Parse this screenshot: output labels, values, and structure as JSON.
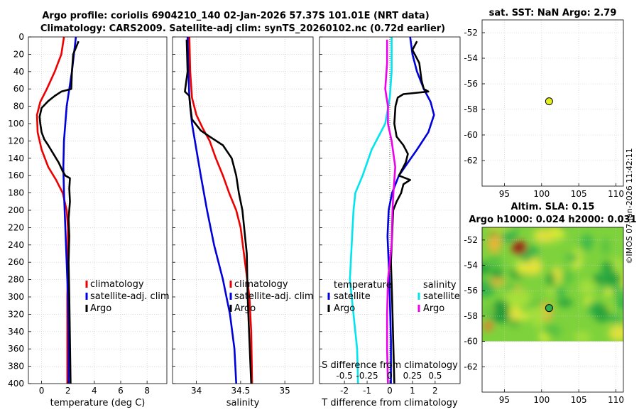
{
  "title": {
    "line1": "Argo profile: coriolis 6904210_140 02-Jan-2026 57.37S 101.01E (NRT data)",
    "line2": "Climatology: CARS2009. Satellite-adj clim: synTS_20260102.nc (0.72d earlier)"
  },
  "credit": "©IMOS 07-Jan-2026 11:42:11",
  "colors": {
    "climatology": "#ee0000",
    "satellite": "#0000dd",
    "argo": "#000000",
    "cyan": "#00e5ee",
    "magenta": "#ee00ee"
  },
  "chart_data": [
    {
      "type": "line",
      "id": "temperature",
      "xlabel": "temperature (deg C)",
      "ylabel": "",
      "xlim": [
        -1,
        9.5
      ],
      "ylim": [
        400,
        0
      ],
      "xticks": [
        "0",
        "2",
        "4",
        "6",
        "8"
      ],
      "xtick_values": [
        0,
        2,
        4,
        6,
        8
      ],
      "yticks": [
        "0",
        "20",
        "40",
        "60",
        "80",
        "100",
        "120",
        "140",
        "160",
        "180",
        "200",
        "220",
        "240",
        "260",
        "280",
        "300",
        "320",
        "340",
        "360",
        "380",
        "400"
      ],
      "legend": [
        "climatology",
        "satellite-adj. clim",
        "Argo"
      ],
      "legend_location": "right",
      "series": [
        {
          "name": "climatology",
          "color_key": "climatology",
          "points": [
            [
              1.7,
              0
            ],
            [
              1.5,
              20
            ],
            [
              1.0,
              40
            ],
            [
              0.4,
              60
            ],
            [
              -0.1,
              75
            ],
            [
              -0.35,
              90
            ],
            [
              -0.3,
              110
            ],
            [
              0.0,
              130
            ],
            [
              0.5,
              150
            ],
            [
              1.1,
              165
            ],
            [
              1.6,
              180
            ],
            [
              1.9,
              200
            ],
            [
              2.0,
              220
            ],
            [
              2.0,
              260
            ],
            [
              1.95,
              300
            ],
            [
              1.95,
              400
            ]
          ]
        },
        {
          "name": "satellite-adj. clim",
          "color_key": "satellite",
          "points": [
            [
              2.6,
              0
            ],
            [
              2.45,
              20
            ],
            [
              2.3,
              40
            ],
            [
              2.1,
              60
            ],
            [
              1.9,
              80
            ],
            [
              1.8,
              100
            ],
            [
              1.7,
              120
            ],
            [
              1.65,
              150
            ],
            [
              1.7,
              180
            ],
            [
              1.8,
              220
            ],
            [
              1.9,
              260
            ],
            [
              2.0,
              300
            ],
            [
              2.05,
              350
            ],
            [
              2.05,
              400
            ]
          ]
        },
        {
          "name": "Argo",
          "color_key": "argo",
          "points": [
            [
              2.8,
              5
            ],
            [
              2.4,
              20
            ],
            [
              2.3,
              40
            ],
            [
              2.25,
              60
            ],
            [
              1.5,
              63
            ],
            [
              1.0,
              68
            ],
            [
              0.5,
              74
            ],
            [
              0.0,
              82
            ],
            [
              -0.15,
              92
            ],
            [
              -0.1,
              100
            ],
            [
              0.0,
              110
            ],
            [
              0.2,
              118
            ],
            [
              0.5,
              125
            ],
            [
              0.9,
              135
            ],
            [
              1.3,
              145
            ],
            [
              1.6,
              155
            ],
            [
              1.8,
              160
            ],
            [
              2.15,
              163
            ],
            [
              2.1,
              175
            ],
            [
              2.15,
              190
            ],
            [
              2.05,
              210
            ],
            [
              2.1,
              230
            ],
            [
              2.05,
              260
            ],
            [
              2.1,
              300
            ],
            [
              2.15,
              350
            ],
            [
              2.2,
              400
            ]
          ]
        }
      ]
    },
    {
      "type": "line",
      "id": "salinity",
      "xlabel": "salinity",
      "xlim": [
        33.73,
        35.32
      ],
      "ylim": [
        400,
        0
      ],
      "xticks": [
        "34",
        "34.5",
        "35"
      ],
      "xtick_values": [
        34,
        34.5,
        35
      ],
      "legend": [
        "climatology",
        "satellite-adj. clim",
        "Argo"
      ],
      "legend_location": "right",
      "series": [
        {
          "name": "climatology",
          "color_key": "climatology",
          "points": [
            [
              33.92,
              0
            ],
            [
              33.93,
              40
            ],
            [
              33.95,
              70
            ],
            [
              34.0,
              90
            ],
            [
              34.07,
              105
            ],
            [
              34.15,
              120
            ],
            [
              34.22,
              140
            ],
            [
              34.3,
              160
            ],
            [
              34.37,
              180
            ],
            [
              34.45,
              200
            ],
            [
              34.5,
              220
            ],
            [
              34.55,
              260
            ],
            [
              34.6,
              300
            ],
            [
              34.62,
              340
            ],
            [
              34.63,
              400
            ]
          ]
        },
        {
          "name": "satellite-adj. clim",
          "color_key": "satellite",
          "points": [
            [
              33.9,
              0
            ],
            [
              33.91,
              40
            ],
            [
              33.92,
              70
            ],
            [
              33.95,
              100
            ],
            [
              34.0,
              130
            ],
            [
              34.05,
              160
            ],
            [
              34.12,
              200
            ],
            [
              34.2,
              240
            ],
            [
              34.3,
              280
            ],
            [
              34.38,
              320
            ],
            [
              34.43,
              360
            ],
            [
              34.45,
              400
            ]
          ]
        },
        {
          "name": "Argo",
          "color_key": "argo",
          "points": [
            [
              33.89,
              3
            ],
            [
              33.9,
              40
            ],
            [
              33.87,
              63
            ],
            [
              33.92,
              68
            ],
            [
              33.93,
              80
            ],
            [
              33.95,
              95
            ],
            [
              34.05,
              108
            ],
            [
              34.15,
              115
            ],
            [
              34.3,
              125
            ],
            [
              34.4,
              140
            ],
            [
              34.45,
              160
            ],
            [
              34.48,
              180
            ],
            [
              34.52,
              200
            ],
            [
              34.55,
              230
            ],
            [
              34.57,
              250
            ],
            [
              34.58,
              300
            ],
            [
              34.6,
              350
            ],
            [
              34.62,
              400
            ]
          ]
        }
      ]
    },
    {
      "type": "line",
      "id": "difference",
      "xlabel": "T difference from climatology",
      "xlabel_top": "S difference from climatology",
      "xlim": [
        -3.1,
        3.1
      ],
      "ylim": [
        400,
        0
      ],
      "xticks": [
        "-2",
        "-1",
        "0",
        "1",
        "2"
      ],
      "xtick_values": [
        -2,
        -1,
        0,
        1,
        2
      ],
      "s_ticks": [
        "-0.5",
        "-0.25",
        "0",
        "0.25",
        "0.5"
      ],
      "s_tick_values": [
        -0.5,
        -0.25,
        0,
        0.25,
        0.5
      ],
      "legend_left_title": "temperature",
      "legend_left": [
        "satellite",
        "Argo"
      ],
      "legend_right_title": "salinity",
      "legend_right": [
        "satellite",
        "Argo"
      ],
      "series": [
        {
          "name": "temperature satellite",
          "color_key": "satellite",
          "points": [
            [
              0.9,
              0
            ],
            [
              1.0,
              20
            ],
            [
              1.2,
              40
            ],
            [
              1.5,
              60
            ],
            [
              1.8,
              75
            ],
            [
              1.95,
              90
            ],
            [
              1.7,
              110
            ],
            [
              1.2,
              130
            ],
            [
              0.8,
              145
            ],
            [
              0.4,
              160
            ],
            [
              0.1,
              180
            ],
            [
              -0.05,
              200
            ],
            [
              -0.1,
              230
            ],
            [
              -0.05,
              260
            ],
            [
              0.0,
              300
            ],
            [
              0.05,
              350
            ],
            [
              0.05,
              400
            ]
          ]
        },
        {
          "name": "temperature Argo",
          "color_key": "argo",
          "points": [
            [
              1.2,
              5
            ],
            [
              1.0,
              15
            ],
            [
              1.3,
              30
            ],
            [
              1.4,
              50
            ],
            [
              1.5,
              60
            ],
            [
              1.7,
              63
            ],
            [
              0.6,
              66
            ],
            [
              0.35,
              70
            ],
            [
              0.25,
              80
            ],
            [
              0.2,
              100
            ],
            [
              0.3,
              115
            ],
            [
              0.6,
              125
            ],
            [
              0.8,
              135
            ],
            [
              0.7,
              145
            ],
            [
              0.5,
              155
            ],
            [
              0.4,
              160
            ],
            [
              0.9,
              165
            ],
            [
              0.6,
              170
            ],
            [
              0.5,
              180
            ],
            [
              0.3,
              190
            ],
            [
              0.15,
              200
            ],
            [
              0.1,
              230
            ],
            [
              0.05,
              260
            ],
            [
              0.1,
              300
            ],
            [
              0.15,
              350
            ],
            [
              0.2,
              400
            ]
          ]
        },
        {
          "name": "salinity satellite",
          "color_key": "cyan",
          "points": [
            [
              0.02,
              0
            ],
            [
              0.02,
              40
            ],
            [
              0.0,
              70
            ],
            [
              -0.05,
              100
            ],
            [
              -0.2,
              130
            ],
            [
              -0.3,
              160
            ],
            [
              -0.38,
              180
            ],
            [
              -0.4,
              200
            ],
            [
              -0.42,
              240
            ],
            [
              -0.44,
              280
            ],
            [
              -0.4,
              320
            ],
            [
              -0.36,
              360
            ],
            [
              -0.35,
              400
            ]
          ]
        },
        {
          "name": "salinity Argo",
          "color_key": "magenta",
          "points": [
            [
              -0.03,
              3
            ],
            [
              -0.03,
              30
            ],
            [
              -0.05,
              60
            ],
            [
              -0.02,
              80
            ],
            [
              -0.02,
              100
            ],
            [
              0.02,
              120
            ],
            [
              0.06,
              150
            ],
            [
              0.04,
              180
            ],
            [
              0.03,
              200
            ],
            [
              0.02,
              240
            ],
            [
              0.0,
              260
            ],
            [
              -0.02,
              280
            ],
            [
              -0.03,
              320
            ],
            [
              -0.03,
              360
            ],
            [
              -0.02,
              400
            ]
          ]
        }
      ]
    },
    {
      "type": "scatter",
      "id": "sst-map",
      "title": "sat. SST: NaN Argo: 2.79",
      "xlim": [
        92,
        111
      ],
      "ylim": [
        -64,
        -51
      ],
      "xticks": [
        "95",
        "100",
        "105",
        "110"
      ],
      "xtick_values": [
        95,
        100,
        105,
        110
      ],
      "yticks": [
        "-52",
        "-54",
        "-56",
        "-58",
        "-60",
        "-62"
      ],
      "ytick_values": [
        -52,
        -54,
        -56,
        -58,
        -60,
        -62
      ],
      "points": [
        {
          "x": 101.01,
          "y": -57.37,
          "color": "#e3ef1c"
        }
      ]
    },
    {
      "type": "heatmap",
      "id": "sla-map",
      "title_line1": "Altim. SLA: 0.15",
      "title_line2": "Argo h1000: 0.024 h2000: 0.031",
      "xlim": [
        92,
        111
      ],
      "ylim": [
        -64,
        -51
      ],
      "data_extent": {
        "x": [
          92,
          111
        ],
        "y": [
          -60,
          -51
        ]
      },
      "xticks": [
        "95",
        "100",
        "105",
        "110"
      ],
      "xtick_values": [
        95,
        100,
        105,
        110
      ],
      "yticks": [
        "-52",
        "-54",
        "-56",
        "-58",
        "-60",
        "-62"
      ],
      "ytick_values": [
        -52,
        -54,
        -56,
        -58,
        -60,
        -62
      ],
      "points": [
        {
          "x": 101.01,
          "y": -57.37,
          "color": "#2fb34a"
        }
      ]
    }
  ]
}
